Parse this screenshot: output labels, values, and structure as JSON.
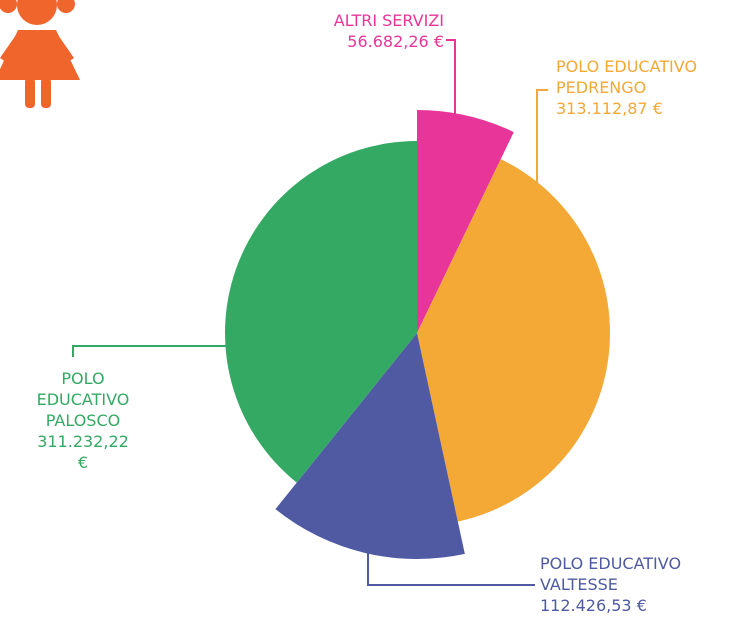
{
  "chart_data": {
    "type": "pie",
    "categories": [
      "ALTRI SERVIZI",
      "POLO EDUCATIVO PEDRENGO",
      "POLO EDUCATIVO VALTESSE",
      "POLO EDUCATIVO PALOSCO"
    ],
    "values": [
      56682.26,
      313112.87,
      112426.53,
      311232.22
    ],
    "value_labels": [
      "56.682,26 €",
      "313.112,87 €",
      "112.426,53 €",
      "311.232,22 €"
    ],
    "colors": [
      "#e8359a",
      "#f4a836",
      "#4f5aa3",
      "#34a963"
    ]
  }
}
